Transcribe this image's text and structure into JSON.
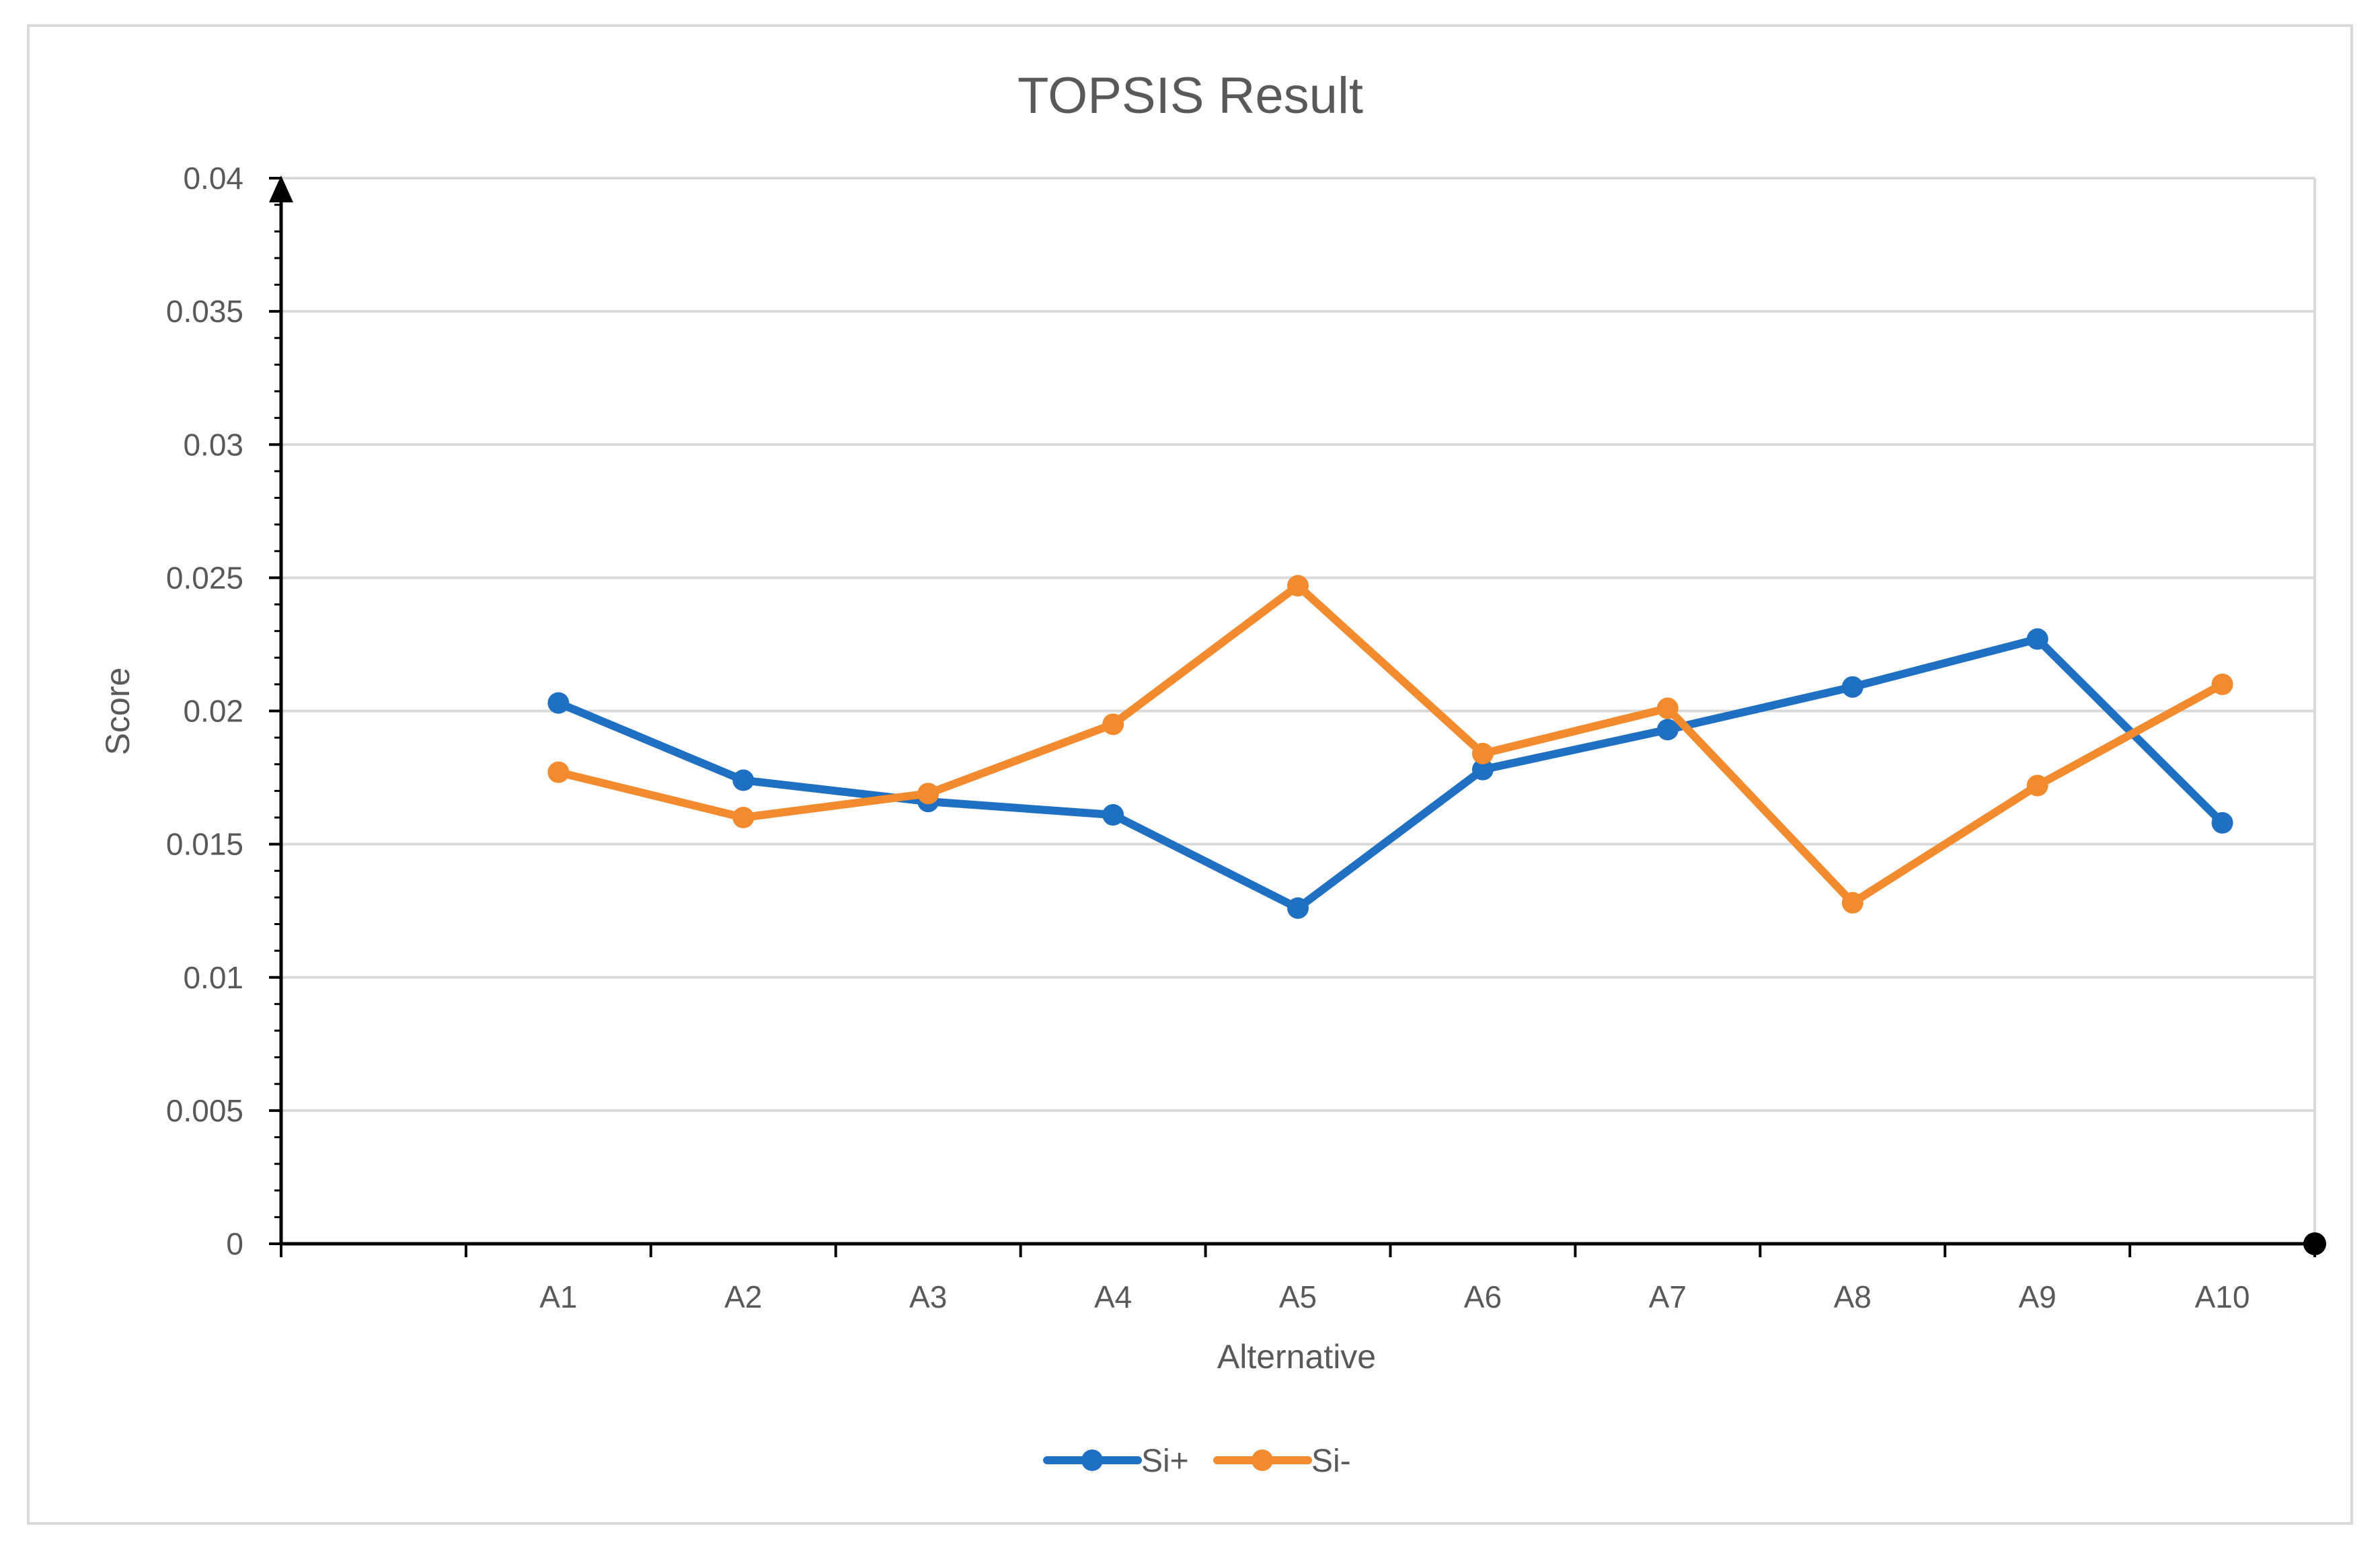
{
  "chart_data": {
    "type": "line",
    "title": "TOPSIS Result",
    "xlabel": "Alternative",
    "ylabel": "Score",
    "categories": [
      "A1",
      "A2",
      "A3",
      "A4",
      "A5",
      "A6",
      "A7",
      "A8",
      "A9",
      "A10"
    ],
    "series": [
      {
        "name": "Si+",
        "color": "#1f6fc2",
        "values": [
          0.0203,
          0.0174,
          0.0166,
          0.0161,
          0.0126,
          0.0178,
          0.0193,
          0.0209,
          0.0227,
          0.0158
        ]
      },
      {
        "name": "Si-",
        "color": "#f28a2e",
        "values": [
          0.0177,
          0.016,
          0.0169,
          0.0195,
          0.0247,
          0.0184,
          0.0201,
          0.0128,
          0.0172,
          0.021
        ]
      }
    ],
    "ylim": [
      0,
      0.04
    ],
    "yticks": [
      "0",
      "0.005",
      "0.01",
      "0.015",
      "0.02",
      "0.025",
      "0.03",
      "0.035",
      "0.04"
    ],
    "grid": true,
    "legend": "bottom"
  }
}
